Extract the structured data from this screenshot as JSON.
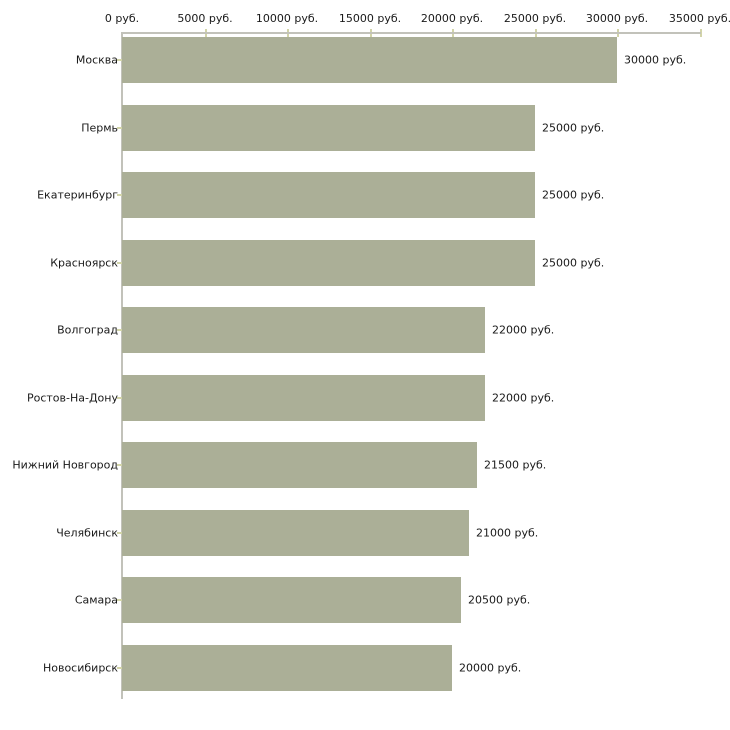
{
  "chart_data": {
    "type": "bar",
    "orientation": "horizontal",
    "title": "",
    "xlabel": "",
    "ylabel": "",
    "unit": "руб.",
    "categories": [
      "Москва",
      "Пермь",
      "Екатеринбург",
      "Красноярск",
      "Волгоград",
      "Ростов-На-Дону",
      "Нижний Новгород",
      "Челябинск",
      "Самара",
      "Новосибирск"
    ],
    "values": [
      30000,
      25000,
      25000,
      25000,
      22000,
      22000,
      21500,
      21000,
      20500,
      20000
    ],
    "value_labels": [
      "30000 руб.",
      "25000 руб.",
      "25000 руб.",
      "25000 руб.",
      "22000 руб.",
      "22000 руб.",
      "21500 руб.",
      "21000 руб.",
      "20500 руб.",
      "20000 руб."
    ],
    "x_ticks": [
      0,
      5000,
      10000,
      15000,
      20000,
      25000,
      30000,
      35000
    ],
    "x_tick_labels": [
      "0 руб.",
      "5000 руб.",
      "10000 руб.",
      "15000 руб.",
      "20000 руб.",
      "25000 руб.",
      "30000 руб.",
      "35000 руб."
    ],
    "xlim": [
      0,
      35000
    ],
    "grid": false,
    "legend": false,
    "colors": {
      "bar": "#ABAF97",
      "axis_line": "#C2C2BA",
      "tick_mark": "#D2D4A9",
      "text": "#1A1A1A",
      "background": "#FFFFFF"
    }
  }
}
